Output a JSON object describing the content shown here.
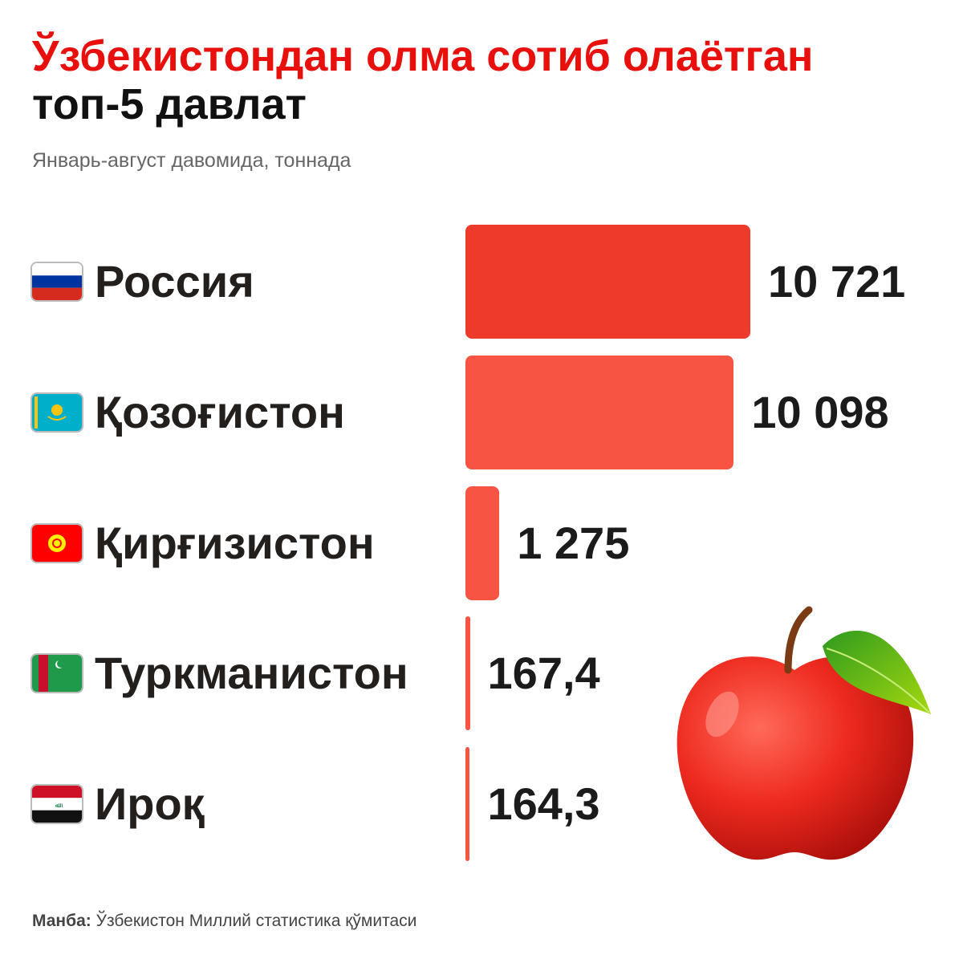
{
  "title_line1": "Ўзбекистондан олма сотиб олаётган",
  "title_line2": "топ-5 давлат",
  "subtitle": "Январь-август давомида, тоннада",
  "source_label": "Манба:",
  "source_text": "Ўзбекистон Миллий статистика қўмитаси",
  "colors": {
    "title_accent": "#e8100d",
    "bar_top": "#ee3a2a",
    "bar": "#f85444"
  },
  "chart_data": {
    "type": "bar",
    "orientation": "horizontal",
    "unit": "тонна",
    "categories": [
      "Россия",
      "Қозоғистон",
      "Қирғизистон",
      "Туркманистон",
      "Ироқ"
    ],
    "values": [
      10721,
      10098,
      1275,
      167.4,
      164.3
    ],
    "value_labels": [
      "10 721",
      "10 098",
      "1 275",
      "167,4",
      "164,3"
    ],
    "flags": [
      "russia-flag",
      "kazakhstan-flag",
      "kyrgyzstan-flag",
      "turkmenistan-flag",
      "iraq-flag"
    ]
  }
}
